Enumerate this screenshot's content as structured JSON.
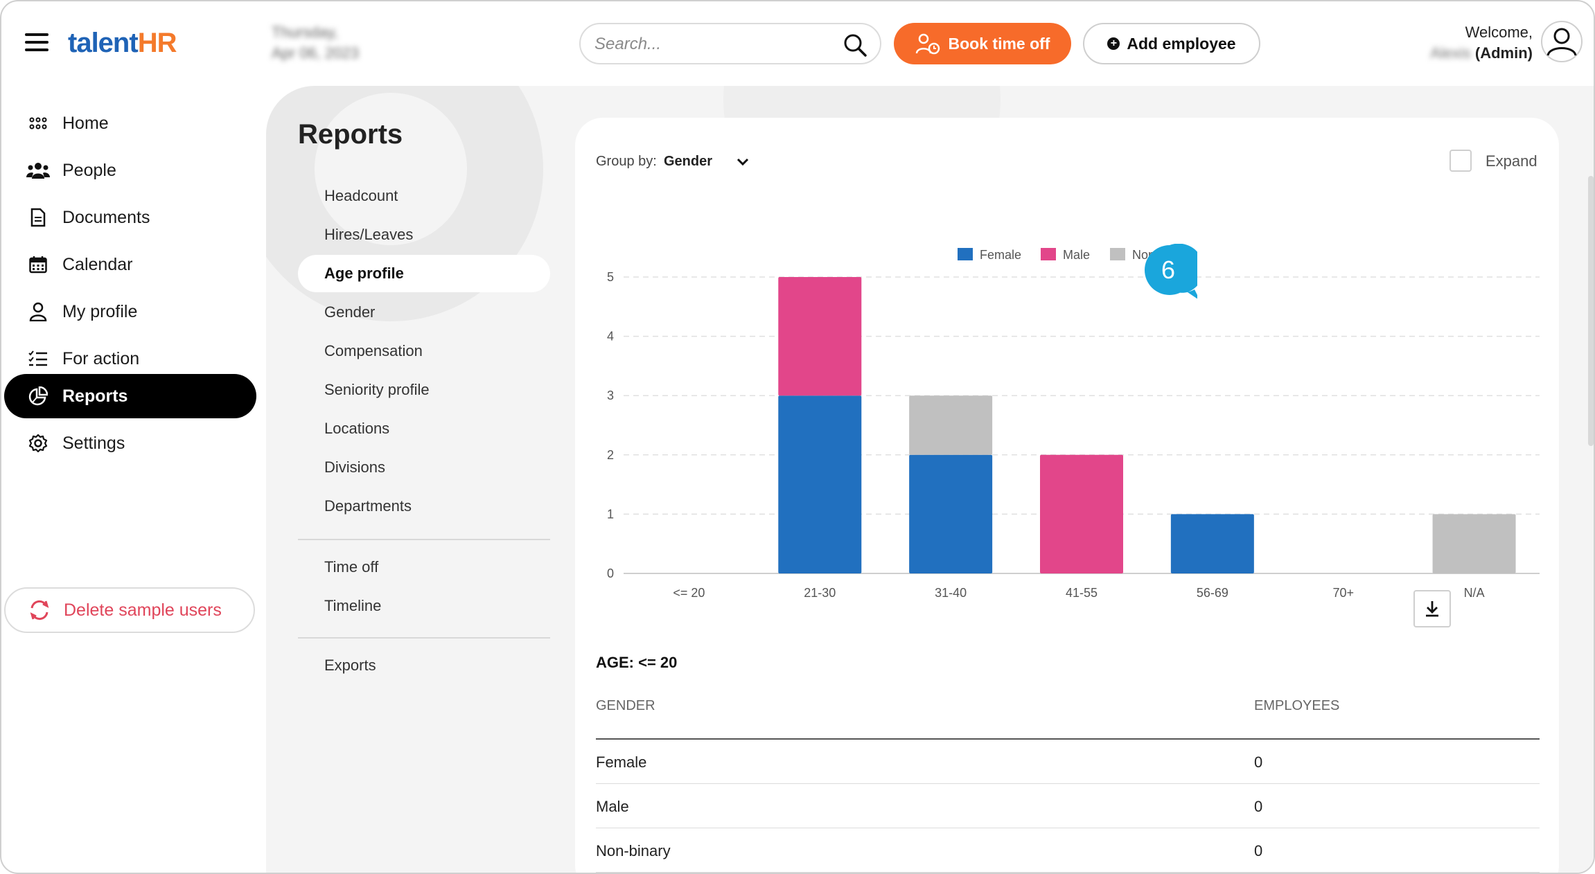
{
  "header": {
    "logo_part1": "talent",
    "logo_part2": "HR",
    "date_line1": "Thursday,",
    "date_line2": "Apr 06, 2023",
    "search_placeholder": "Search...",
    "book_time_off": "Book time off",
    "add_employee": "Add employee",
    "welcome": "Welcome,",
    "user_name": "Alexis",
    "user_role": "(Admin)"
  },
  "sidebar": {
    "items": [
      {
        "label": "Home",
        "icon": "grid-dots-icon"
      },
      {
        "label": "People",
        "icon": "people-icon"
      },
      {
        "label": "Documents",
        "icon": "document-icon"
      },
      {
        "label": "Calendar",
        "icon": "calendar-icon"
      },
      {
        "label": "My profile",
        "icon": "person-icon"
      },
      {
        "label": "For action",
        "icon": "checklist-icon"
      },
      {
        "label": "Reports",
        "icon": "pie-chart-icon",
        "active": true
      },
      {
        "label": "Settings",
        "icon": "gear-icon"
      }
    ],
    "delete_sample": "Delete sample users"
  },
  "reports": {
    "title": "Reports",
    "items": [
      "Headcount",
      "Hires/Leaves",
      "Age profile",
      "Gender",
      "Compensation",
      "Seniority profile",
      "Locations",
      "Divisions",
      "Departments"
    ],
    "items2": [
      "Time off",
      "Timeline"
    ],
    "items3": [
      "Exports"
    ],
    "active": "Age profile"
  },
  "card": {
    "groupby_label": "Group by:",
    "groupby_value": "Gender",
    "expand_label": "Expand",
    "callout_number": "6"
  },
  "chart_data": {
    "type": "bar",
    "stacked": true,
    "categories": [
      "<= 20",
      "21-30",
      "31-40",
      "41-55",
      "56-69",
      "70+",
      "N/A"
    ],
    "series": [
      {
        "name": "Female",
        "color": "#2170bf",
        "values": [
          0,
          3,
          2,
          0,
          1,
          0,
          0
        ]
      },
      {
        "name": "Male",
        "color": "#e2468a",
        "values": [
          0,
          2,
          0,
          2,
          0,
          0,
          0
        ]
      },
      {
        "name": "Non-binary",
        "color": "#c0c0c0",
        "values": [
          0,
          0,
          1,
          0,
          0,
          0,
          1
        ]
      }
    ],
    "ylim": [
      0,
      5
    ],
    "yticks": [
      0,
      1,
      2,
      3,
      4,
      5
    ],
    "legend": "top-center",
    "grid": true
  },
  "table": {
    "title": "AGE: <= 20",
    "col1": "GENDER",
    "col2": "EMPLOYEES",
    "rows": [
      {
        "gender": "Female",
        "employees": "0"
      },
      {
        "gender": "Male",
        "employees": "0"
      },
      {
        "gender": "Non-binary",
        "employees": "0"
      }
    ]
  }
}
